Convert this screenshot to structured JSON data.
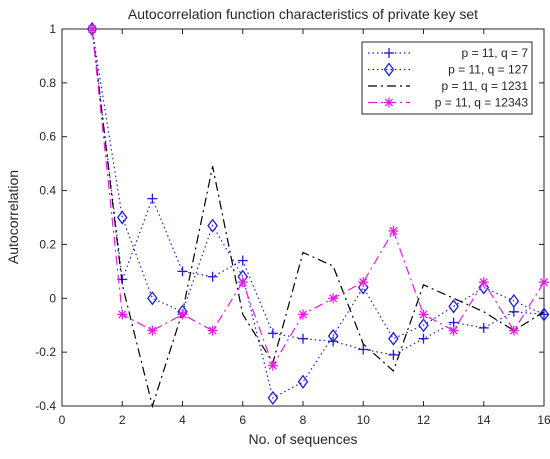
{
  "chart_data": {
    "type": "line",
    "title": "Autocorrelation function characteristics of private key set",
    "xlabel": "No. of sequences",
    "ylabel": "Autocorrelation",
    "xlim": [
      0,
      16
    ],
    "ylim": [
      -0.4,
      1
    ],
    "xticks": [
      0,
      2,
      4,
      6,
      8,
      10,
      12,
      14,
      16
    ],
    "yticks": [
      -0.4,
      -0.2,
      0,
      0.2,
      0.4,
      0.6,
      0.8,
      1
    ],
    "x": [
      1,
      2,
      3,
      4,
      5,
      6,
      7,
      8,
      9,
      10,
      11,
      12,
      13,
      14,
      15,
      16
    ],
    "grid": false,
    "legend_position": "top-right",
    "series": [
      {
        "name": "p = 11, q = 7",
        "color": "#1f1fcf",
        "line": "dotted",
        "marker": "plus",
        "values": [
          1,
          0.07,
          0.37,
          0.1,
          0.08,
          0.14,
          -0.13,
          -0.15,
          -0.16,
          -0.19,
          -0.21,
          -0.15,
          -0.09,
          -0.11,
          -0.05,
          -0.06
        ]
      },
      {
        "name": "p = 11, q = 127",
        "color": "#1f1fcf",
        "line": "dotted",
        "marker": "diamond",
        "values": [
          1,
          0.3,
          0,
          -0.05,
          0.27,
          0.08,
          -0.37,
          -0.31,
          -0.14,
          0.04,
          -0.15,
          -0.1,
          -0.03,
          0.04,
          -0.01,
          -0.06
        ]
      },
      {
        "name": "p = 11, q = 1231",
        "color": "#000000",
        "line": "dashdot",
        "marker": "none",
        "values": [
          1,
          0.05,
          -0.4,
          -0.05,
          0.49,
          -0.06,
          -0.24,
          0.17,
          0.12,
          -0.17,
          -0.27,
          0.05,
          0,
          -0.05,
          -0.12,
          -0.05
        ]
      },
      {
        "name": "p = 11, q = 12343",
        "color": "#e01ee0",
        "line": "dashdot",
        "marker": "asterisk",
        "values": [
          1,
          -0.06,
          -0.12,
          -0.06,
          -0.12,
          0.06,
          -0.25,
          -0.06,
          0,
          0.06,
          0.25,
          -0.06,
          -0.12,
          0.06,
          -0.12,
          0.06
        ]
      }
    ]
  }
}
